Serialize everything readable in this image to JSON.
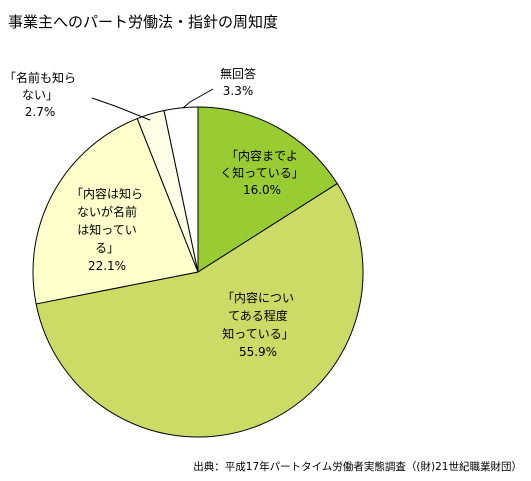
{
  "chart_data": {
    "type": "pie",
    "title": "事業主へのパート労働法・指針の周知度",
    "slices": [
      {
        "key": "well",
        "label_lines": [
          "「内容までよ",
          "く知っている」"
        ],
        "value": 16.0,
        "value_text": "16.0%",
        "color": "#99cc33"
      },
      {
        "key": "some",
        "label_lines": [
          "「内容につい",
          "てある程度",
          "知っている」"
        ],
        "value": 55.9,
        "value_text": "55.9%",
        "color": "#cbdb66"
      },
      {
        "key": "nameonly",
        "label_lines": [
          "「内容は知ら",
          "ないが名前",
          "は知ってい",
          "る」"
        ],
        "value": 22.1,
        "value_text": "22.1%",
        "color": "#ffffcc"
      },
      {
        "key": "unaware",
        "label_lines": [
          "「名前も知ら",
          "ない」"
        ],
        "value": 2.7,
        "value_text": "2.7%",
        "color": "#ffffe8"
      },
      {
        "key": "noanswer",
        "label_lines": [
          "無回答"
        ],
        "value": 3.3,
        "value_text": "3.3%",
        "color": "#ffffff"
      }
    ],
    "start": "12 o'clock",
    "direction": "clockwise",
    "legend": "none",
    "source": "出典：平成17年パートタイム労働者実態調査（(財)21世紀職業財団）"
  }
}
